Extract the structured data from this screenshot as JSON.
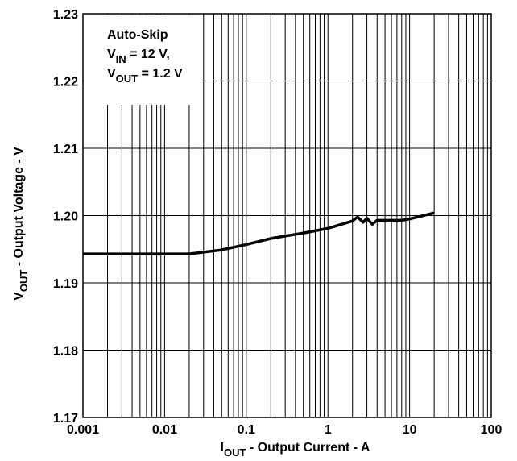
{
  "chart_data": {
    "type": "line",
    "x_label": {
      "main": "I",
      "sub": "OUT",
      "rest": " - Output Current - A"
    },
    "y_label": {
      "main": "V",
      "sub": "OUT",
      "rest": " - Output Voltage - V"
    },
    "annotation": [
      {
        "main": "Auto-Skip"
      },
      {
        "main": "V",
        "sub": "IN",
        "rest": " = 12 V,"
      },
      {
        "main": "V",
        "sub": "OUT",
        "rest": " = 1.2 V"
      }
    ],
    "x": [
      0.001,
      0.005,
      0.02,
      0.05,
      0.1,
      0.2,
      0.5,
      1,
      2,
      2.3,
      2.7,
      3,
      3.5,
      4,
      8,
      10,
      20
    ],
    "series": [
      {
        "color": "#000000",
        "values": [
          1.1943,
          1.1943,
          1.1943,
          1.1949,
          1.1957,
          1.1966,
          1.1974,
          1.1981,
          1.1992,
          1.1998,
          1.199,
          1.1996,
          1.1987,
          1.1993,
          1.1993,
          1.1995,
          1.2004
        ]
      }
    ],
    "xscale": "log",
    "xlim": [
      0.001,
      100
    ],
    "xticks": [
      0.001,
      0.01,
      0.1,
      1,
      10,
      100
    ],
    "ylim": [
      1.17,
      1.23
    ],
    "yticks": [
      1.17,
      1.18,
      1.19,
      {
        "value": 1.2,
        "label": "1.20"
      },
      1.21,
      1.22,
      1.23
    ],
    "grid": true
  }
}
